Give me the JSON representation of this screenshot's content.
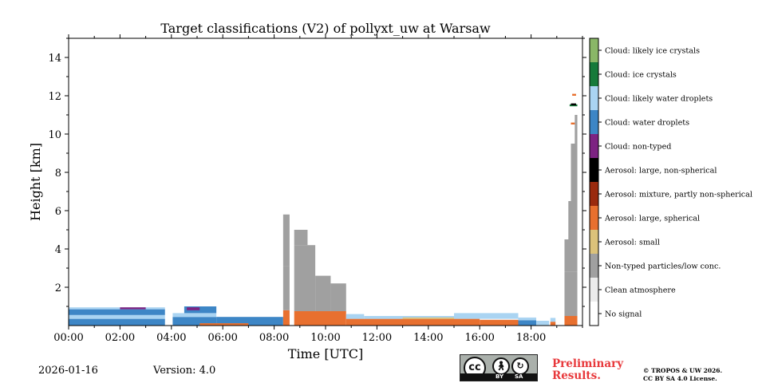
{
  "chart_data": {
    "type": "heatmap",
    "title": "Target classifications (V2) of pollyxt_uw at Warsaw",
    "xlabel": "Time [UTC]",
    "ylabel": "Height [km]",
    "xlim": [
      0,
      20
    ],
    "ylim": [
      0,
      15
    ],
    "x_ticks": [
      {
        "value": 0,
        "label": "00:00"
      },
      {
        "value": 2,
        "label": "02:00"
      },
      {
        "value": 4,
        "label": "04:00"
      },
      {
        "value": 6,
        "label": "06:00"
      },
      {
        "value": 8,
        "label": "08:00"
      },
      {
        "value": 10,
        "label": "10:00"
      },
      {
        "value": 12,
        "label": "12:00"
      },
      {
        "value": 14,
        "label": "14:00"
      },
      {
        "value": 16,
        "label": "16:00"
      },
      {
        "value": 18,
        "label": "18:00"
      }
    ],
    "y_ticks": [
      {
        "value": 2,
        "label": "2"
      },
      {
        "value": 4,
        "label": "4"
      },
      {
        "value": 6,
        "label": "6"
      },
      {
        "value": 8,
        "label": "8"
      },
      {
        "value": 10,
        "label": "10"
      },
      {
        "value": 12,
        "label": "12"
      },
      {
        "value": 14,
        "label": "14"
      }
    ],
    "legend": [
      {
        "label": "No signal",
        "color": "#ffffff"
      },
      {
        "label": "Clean atmosphere",
        "color": "#ececec"
      },
      {
        "label": "Non-typed particles/low conc.",
        "color": "#a0a0a0"
      },
      {
        "label": "Aerosol: small",
        "color": "#dcc27a"
      },
      {
        "label": "Aerosol: large, spherical",
        "color": "#e8702f"
      },
      {
        "label": "Aerosol: mixture, partly non-spherical",
        "color": "#9a2a0e"
      },
      {
        "label": "Aerosol: large, non-spherical",
        "color": "#000000"
      },
      {
        "label": "Cloud: non-typed",
        "color": "#7d2382"
      },
      {
        "label": "Cloud: water droplets",
        "color": "#3d86c6"
      },
      {
        "label": "Cloud: likely water droplets",
        "color": "#aad4f2"
      },
      {
        "label": "Cloud: ice crystals",
        "color": "#167a3a"
      },
      {
        "label": "Cloud: likely ice crystals",
        "color": "#8ab767"
      }
    ],
    "regions": [
      {
        "class": "Cloud: water droplets",
        "t0": 0.0,
        "t1": 3.75,
        "h0": 0.0,
        "h1": 0.35
      },
      {
        "class": "Cloud: likely water droplets",
        "t0": 0.0,
        "t1": 3.75,
        "h0": 0.35,
        "h1": 0.55
      },
      {
        "class": "Cloud: water droplets",
        "t0": 0.0,
        "t1": 3.75,
        "h0": 0.55,
        "h1": 0.85
      },
      {
        "class": "Cloud: likely water droplets",
        "t0": 0.0,
        "t1": 3.75,
        "h0": 0.85,
        "h1": 0.95
      },
      {
        "class": "Cloud: non-typed",
        "t0": 2.0,
        "t1": 3.0,
        "h0": 0.85,
        "h1": 0.95
      },
      {
        "class": "Cloud: water droplets",
        "t0": 4.05,
        "t1": 5.75,
        "h0": 0.0,
        "h1": 0.45
      },
      {
        "class": "Cloud: likely water droplets",
        "t0": 4.05,
        "t1": 5.75,
        "h0": 0.45,
        "h1": 0.65
      },
      {
        "class": "Cloud: water droplets",
        "t0": 4.5,
        "t1": 5.75,
        "h0": 0.65,
        "h1": 1.0
      },
      {
        "class": "Cloud: non-typed",
        "t0": 4.6,
        "t1": 5.1,
        "h0": 0.8,
        "h1": 0.95
      },
      {
        "class": "Cloud: water droplets",
        "t0": 5.75,
        "t1": 8.35,
        "h0": 0.0,
        "h1": 0.45
      },
      {
        "class": "Aerosol: large, spherical",
        "t0": 5.1,
        "t1": 7.0,
        "h0": 0.0,
        "h1": 0.12
      },
      {
        "class": "Aerosol: large, spherical",
        "t0": 8.35,
        "t1": 8.6,
        "h0": 0.0,
        "h1": 0.8
      },
      {
        "class": "Non-typed particles/low conc.",
        "t0": 8.35,
        "t1": 8.6,
        "h0": 0.8,
        "h1": 3.1
      },
      {
        "class": "Non-typed particles/low conc.",
        "t0": 8.35,
        "t1": 8.6,
        "h0": 3.1,
        "h1": 5.8
      },
      {
        "class": "Aerosol: large, spherical",
        "t0": 8.78,
        "t1": 10.8,
        "h0": 0.0,
        "h1": 0.75
      },
      {
        "class": "Non-typed particles/low conc.",
        "t0": 8.78,
        "t1": 9.6,
        "h0": 0.75,
        "h1": 3.0
      },
      {
        "class": "Non-typed particles/low conc.",
        "t0": 9.6,
        "t1": 10.2,
        "h0": 0.75,
        "h1": 2.6
      },
      {
        "class": "Non-typed particles/low conc.",
        "t0": 10.2,
        "t1": 10.8,
        "h0": 0.75,
        "h1": 2.2
      },
      {
        "class": "Non-typed particles/low conc.",
        "t0": 8.78,
        "t1": 9.6,
        "h0": 3.0,
        "h1": 4.2
      },
      {
        "class": "Non-typed particles/low conc.",
        "t0": 8.78,
        "t1": 9.3,
        "h0": 4.2,
        "h1": 5.0
      },
      {
        "class": "Aerosol: large, spherical",
        "t0": 10.8,
        "t1": 16.0,
        "h0": 0.0,
        "h1": 0.35
      },
      {
        "class": "Cloud: likely water droplets",
        "t0": 10.8,
        "t1": 11.5,
        "h0": 0.35,
        "h1": 0.6
      },
      {
        "class": "Cloud: likely water droplets",
        "t0": 11.5,
        "t1": 15.0,
        "h0": 0.35,
        "h1": 0.5
      },
      {
        "class": "Aerosol: small",
        "t0": 13.0,
        "t1": 15.0,
        "h0": 0.35,
        "h1": 0.42
      },
      {
        "class": "Cloud: likely water droplets",
        "t0": 15.0,
        "t1": 17.5,
        "h0": 0.35,
        "h1": 0.65
      },
      {
        "class": "Aerosol: large, spherical",
        "t0": 16.0,
        "t1": 17.5,
        "h0": 0.0,
        "h1": 0.3
      },
      {
        "class": "Cloud: water droplets",
        "t0": 17.5,
        "t1": 18.2,
        "h0": 0.0,
        "h1": 0.28
      },
      {
        "class": "Cloud: likely water droplets",
        "t0": 17.5,
        "t1": 18.2,
        "h0": 0.28,
        "h1": 0.42
      },
      {
        "class": "Cloud: likely water droplets",
        "t0": 18.2,
        "t1": 18.7,
        "h0": 0.0,
        "h1": 0.25
      },
      {
        "class": "Aerosol: large, spherical",
        "t0": 18.75,
        "t1": 18.95,
        "h0": 0.0,
        "h1": 0.2
      },
      {
        "class": "Cloud: likely water droplets",
        "t0": 18.75,
        "t1": 18.95,
        "h0": 0.2,
        "h1": 0.4
      },
      {
        "class": "Aerosol: large, spherical",
        "t0": 19.3,
        "t1": 19.8,
        "h0": 0.0,
        "h1": 0.5
      },
      {
        "class": "Non-typed particles/low conc.",
        "t0": 19.3,
        "t1": 19.8,
        "h0": 0.5,
        "h1": 2.8
      },
      {
        "class": "Non-typed particles/low conc.",
        "t0": 19.3,
        "t1": 19.8,
        "h0": 2.8,
        "h1": 4.5
      },
      {
        "class": "Non-typed particles/low conc.",
        "t0": 19.45,
        "t1": 19.8,
        "h0": 4.5,
        "h1": 6.5
      },
      {
        "class": "Non-typed particles/low conc.",
        "t0": 19.55,
        "t1": 19.8,
        "h0": 6.5,
        "h1": 9.5
      },
      {
        "class": "Non-typed particles/low conc.",
        "t0": 19.7,
        "t1": 19.8,
        "h0": 9.5,
        "h1": 11.0
      },
      {
        "class": "Aerosol: large, spherical",
        "t0": 19.6,
        "t1": 19.75,
        "h0": 12.0,
        "h1": 12.1
      },
      {
        "class": "Cloud: ice crystals",
        "t0": 19.5,
        "t1": 19.8,
        "h0": 11.45,
        "h1": 11.55
      },
      {
        "class": "Aerosol: large, non-spherical",
        "t0": 19.55,
        "t1": 19.75,
        "h0": 11.5,
        "h1": 11.6
      },
      {
        "class": "Aerosol: large, spherical",
        "t0": 19.55,
        "t1": 19.7,
        "h0": 10.5,
        "h1": 10.6
      }
    ]
  },
  "footer": {
    "date": "2026-01-16",
    "version": "Version: 4.0",
    "badge_cc": "cc",
    "badge_by": "BY",
    "badge_sa": "SA",
    "preliminary_line1": "Preliminary",
    "preliminary_line2": "Results.",
    "copyright_line1": "© TROPOS & UW 2026.",
    "copyright_line2": "CC BY SA 4.0 License."
  }
}
